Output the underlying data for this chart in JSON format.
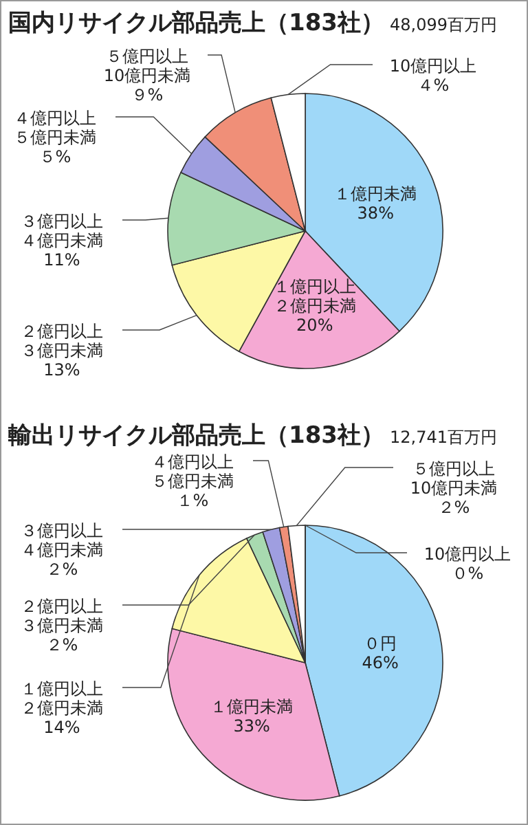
{
  "chart_data": [
    {
      "type": "pie",
      "title": "国内リサイクル部品売上（183社）",
      "subtitle": "48,099百万円",
      "categories": [
        "１億円未満",
        "１億円以上２億円未満",
        "２億円以上３億円未満",
        "３億円以上４億円未満",
        "４億円以上５億円未満",
        "５億円以上10億円未満",
        "10億円以上"
      ],
      "values": [
        38,
        20,
        13,
        11,
        5,
        9,
        4
      ],
      "value_labels": [
        "38%",
        "20%",
        "13%",
        "11%",
        "５%",
        "９%",
        "４%"
      ],
      "colors": [
        "#9fd8f8",
        "#f5a9d3",
        "#fdf8a6",
        "#a8dab0",
        "#9f9ee0",
        "#f08f78",
        "#ffffff"
      ]
    },
    {
      "type": "pie",
      "title": "輸出リサイクル部品売上（183社）",
      "subtitle": "12,741百万円",
      "categories": [
        "０円",
        "１億円未満",
        "１億円以上２億円未満",
        "２億円以上３億円未満",
        "３億円以上４億円未満",
        "４億円以上５億円未満",
        "５億円以上10億円未満",
        "10億円以上"
      ],
      "values": [
        46,
        33,
        14,
        2,
        2,
        1,
        2,
        0
      ],
      "value_labels": [
        "46%",
        "33%",
        "14%",
        "２%",
        "２%",
        "１%",
        "２%",
        "０%"
      ],
      "colors": [
        "#9fd8f8",
        "#f5a9d3",
        "#fdf8a6",
        "#a8dab0",
        "#9f9ee0",
        "#f08f78",
        "#ffffff",
        "#ffffff"
      ]
    }
  ]
}
